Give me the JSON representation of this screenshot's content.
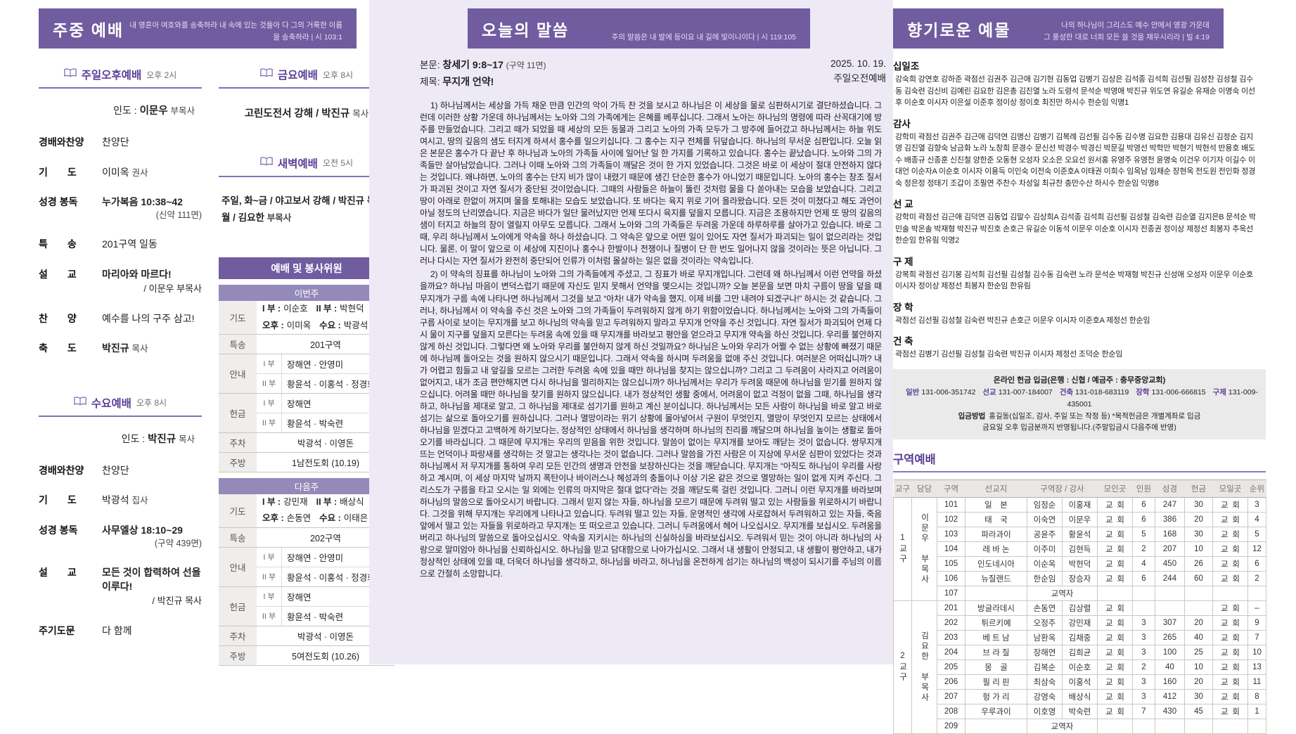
{
  "colors": {
    "accent": "#705c9f",
    "accent_dark": "#5b3f96",
    "week_bar": "#948ab9",
    "mid_panel_bg": "#edeaf6"
  },
  "left": {
    "header": {
      "title": "주중 예배",
      "subtitle": "내 영혼아 여호와를 송축하라 내 속에 있는 것들아 다 그의 거룩한 이름을 송축하라  |  시 103:1"
    },
    "sunday": {
      "title": "주일오후예배",
      "time": "오후 2시",
      "leader_label": "인도 :",
      "leader": "이문우",
      "leader_suffix": "부목사",
      "rows": {
        "praise": {
          "label": "경배와찬양",
          "value": "찬양단"
        },
        "prayer": {
          "label": "기  도",
          "value": "이미옥",
          "suffix": "권사"
        },
        "scripture": {
          "label": "성경 봉독",
          "value": "누가복음  10:38~42",
          "page": "(신약 111면)"
        },
        "special": {
          "label": "특  송",
          "value": "201구역 일동"
        },
        "sermon": {
          "label": "설  교",
          "value": "마리아와  마르다!",
          "by": "/ 이문우 부목사"
        },
        "hymn": {
          "label": "찬  양",
          "value": "예수를 나의 구주 삼고!"
        },
        "benediction": {
          "label": "축  도",
          "value": "박진규",
          "suffix": "목사"
        }
      }
    },
    "wednesday": {
      "title": "수요예배",
      "time": "오후 8시",
      "leader_label": "인도 :",
      "leader": "박진규",
      "leader_suffix": "목사",
      "rows": {
        "praise": {
          "label": "경배와찬양",
          "value": "찬양단"
        },
        "prayer": {
          "label": "기  도",
          "value": "박광석",
          "suffix": "집사"
        },
        "scripture": {
          "label": "성경 봉독",
          "value": "사무엘상  18:10~29",
          "page": "(구약 439면)"
        },
        "sermon": {
          "label": "설  교",
          "value": "모든 것이 합력하여 선을 이루다!",
          "by": "/ 박진규 목사"
        },
        "lords_prayer": {
          "label": "주기도문",
          "value": "다 함께"
        }
      }
    },
    "friday": {
      "title": "금요예배",
      "time": "오후 8시",
      "line": "고린도전서 강해 /",
      "name": "박진규",
      "suffix": "목사"
    },
    "dawn": {
      "title": "새벽예배",
      "time": "오전 5시",
      "line1": "주일, 화~금 / 야고보서 강해 / 박진규 목사",
      "line2": "월 / 김요한",
      "line2_suffix": "부목사"
    }
  },
  "committee": {
    "title": "예배 및 봉사위원",
    "row_labels": {
      "prayer": "기도",
      "special": "특송",
      "usher": "안내",
      "offering": "헌금",
      "parking": "주차",
      "kitchen": "주방"
    },
    "this_week": {
      "label": "이번주",
      "prayer": {
        "l1a": "I 부 :",
        "v1a": "이순호",
        "l1b": "II 부 :",
        "v1b": "박현덕",
        "l2a": "오후 :",
        "v2a": "이미옥",
        "l2b": "수요 :",
        "v2b": "박광석"
      },
      "special": "201구역",
      "usher": [
        {
          "p": "I 부",
          "n": "장해연 · 안영미"
        },
        {
          "p": "II 부",
          "n": "황윤석 · 이홍석 · 정경화"
        }
      ],
      "offering": [
        {
          "p": "I 부",
          "n": "장해연"
        },
        {
          "p": "II 부",
          "n": "황윤석 · 박숙련"
        }
      ],
      "parking": "박광석 · 이영돈",
      "kitchen": "1남전도회 (10.19)"
    },
    "next_week": {
      "label": "다음주",
      "prayer": {
        "l1a": "I 부 :",
        "v1a": "강민재",
        "l1b": "II 부 :",
        "v1b": "배상식",
        "l2a": "오후 :",
        "v2a": "손동연",
        "l2b": "수요 :",
        "v2b": "이태은"
      },
      "special": "202구역",
      "usher": [
        {
          "p": "I 부",
          "n": "장해연 · 안영미"
        },
        {
          "p": "II 부",
          "n": "황윤석 · 이홍석 · 정경화"
        }
      ],
      "offering": [
        {
          "p": "I 부",
          "n": "장해연"
        },
        {
          "p": "II 부",
          "n": "황윤석 · 박숙련"
        }
      ],
      "parking": "박광석 · 이영돈",
      "kitchen": "5여전도회 (10.26)"
    }
  },
  "mid": {
    "header": {
      "title": "오늘의 말씀",
      "subtitle": "주의 말씀은 내 발에 등이요 내 길에 빛이니이다  |  시 119:105"
    },
    "meta": {
      "scripture_label": "본문:",
      "scripture": "창세기  9:8~17",
      "scripture_page": "(구약 11면)",
      "title_label": "제목:",
      "sermon_title": "무지개  언약!",
      "date": "2025. 10. 19.",
      "service": "주일오전예배"
    },
    "sermon": {
      "p1": "1) 하나님께서는 세상을 가득 채운 만큼 인간의 악이 가득 찬 것을 보시고 하나님은 이 세상을 물로 심판하시기로 결단하셨습니다. 그런데 이러한 상황 가운데 하나님께서는 노아와 그의 가족에게는 은혜를 베푸십니다. 그래서 노아는 하나님의 명령에 따라 산꼭대기에 방주를 만들었습니다. 그리고 때가 되었을 때 세상의 모든 동물과 그리고 노아의 가족 모두가 그 방주에 들어갔고 하나님께서는 하늘 위도 여시고, 땅의 깊음의 샘도 터지게 하셔서 홍수를 일으키십니다. 그 홍수는 지구 전체를 뒤덮습니다. 하나님의 무서운 심판입니다. 오늘 읽은 본문은 홍수가 다 끝난 후 하나님과 노아의 가족들 사이에 일어난 일 한 가지를 기록하고 있습니다. 홍수는 끝났습니다. 노아와 그의 가족들만 살아남았습니다. 그러나 이때 노아와 그의 가족들이 깨달은 것이 한 가지 있었습니다. 그것은 바로 이 세상이 절대 안전하지 않다는 것입니다. 왜냐하면, 노아의 홍수는 단지 비가 많이 내렸기 때문에 생긴 단순한 홍수가 아니었기 때문입니다. 노아의 홍수는 창조 질서가 파괴된 것이고 자연 질서가 중단된 것이었습니다. 그때의 사람들은 하늘이 뚫린 것처럼 물을 다 쏟아내는 모습을 보았습니다. 그리고 땅이 아래로 한없이 꺼지며 물을 토해내는 모습도 보았습니다. 또 바다는 육지 위로 기어 올라왔습니다. 모든 것이 미쳤다고 해도 과언이 아닐 정도의 난리였습니다. 지금은 바다가 일단 물러났지만 언제 또다시 육지를 덮을지 모릅니다. 지금은 조용하지만 언제 또 땅의 깊음의 샘이 터지고 하늘의 창이 열릴지 아무도 모릅니다. 그래서 노아와 그의 가족들은 두려움 가운데 하루하루를 살아가고 있습니다. 바로 그때, 우리 하나님께서 노아에게 약속을 하나 하셨습니다. 그 약속은 앞으로 어떤 일이 있어도 자연 질서가 파괴되는 일이 없으리라는 것입니다. 물론, 이 말이 앞으로 이 세상에 지진이나 홍수나 한발이나 전쟁이나 질병이 단 한 번도 일어나지 않을 것이라는 뜻은 아닙니다. 그러나 다시는 자연 질서가 완전히 중단되어 인류가 이처럼 몰살하는 일은 없을 것이라는 약속입니다.",
      "p2": "2) 이 약속의 징표를 하나님이 노아와 그의 가족들에게 주셨고, 그 징표가 바로 무지개입니다. 그런데 왜 하나님께서 이런 언약을 하셨을까요? 하나님 마음이 변덕스럽기 때문에 자신도 믿지 못해서 언약을 맺으시는 것입니까? 오늘 본문을 보면 마치 구름이 땅을 덮을 때 무지개가 구름 속에 나타나면 하나님께서 그것을 보고 “아차! 내가 약속을 했지. 이제 비를 그만 내려야 되겠구나!” 하시는 것 같습니다. 그러나, 하나님께서 이 약속을 주신 것은 노아와 그의 가족들이 두려워하지 않게 하기 위함이었습니다. 하나님께서는 노아와 그의 가족들이 구름 사이로 보이는 무지개를 보고 하나님의 약속을 믿고 두려워하지 말라고 무지개 언약을 주신 것입니다. 자연 질서가 파괴되어 언제 다시 물이 지구를 덮을지 모른다는 두려움 속에 있을 때 무지개를 바라보고 평안을 얻으라고 무지개 약속을 하신 것입니다. 우리를 불안하지 않게 하신 것입니다. 그렇다면 왜 노아와 우리를 불안하지 않게 하신 것일까요? 하나님은 노아와 우리가 어쩔 수 없는 상황에 빠졌기 때문에 하나님께 돌아오는 것을 원하지 않으시기 때문입니다. 그래서 약속을 하시며 두려움을 없애 주신 것입니다. 여러분은 어떠십니까? 내가 어렵고 힘들고 내 앞길을 모르는 그러한 두려움 속에 있을 때만 하나님을 찾지는 않으십니까? 그리고 그 두려움이 사라지고 어려움이 없어지고, 내가 조금 편안해지면 다시 하나님을 멀리하지는 않으십니까? 하나님께서는 우리가 두려움 때문에 하나님을 믿기를 원하지 않으십니다. 어려울 때만 하나님을 찾기를 원하지 않으십니다. 내가 정상적인 생활 중에서, 어려움이 없고 걱정이 없을 그때, 하나님을 생각하고, 하나님을 제대로 알고, 그 하나님을 제대로 섬기기를 원하고 계신 분이십니다. 하나님께서는 모든 사람이 하나님을 바로 알고 바로 섬기는 삶으로 돌아오기를 원하십니다. 그러나 멸망이라는 위기 상황에 몰아넣어서 구원이 무엇인지, 멸망이 무엇인지 모르는 상태에서 하나님을 믿겠다고 고백하게 하기보다는, 정상적인 상태에서 하나님을 생각하며 하나님의 진리를 깨달으며 하나님을 높이는 생활로 돌아오기를 바라십니다. 그 때문에 무지개는 우리의 믿음을 위한 것입니다. 말씀이 없이는 무지개를 보아도 깨닫는 것이 없습니다. 쌍무지개 뜨는 언덕이나 파랑새를 생각하는 것 말고는 생각나는 것이 없습니다. 그러나 말씀을 가진 사람은 이 지상에 무서운 심판이 있었다는 것과 하나님께서 저 무지개를 통하여 우리 모든 인간의 생명과 안전을 보장하신다는 것을 깨닫습니다. 무지개는 “아직도 하나님이 우리를 사랑하고 계시며, 이 세상 마지막 날까지 폭탄이나 바이러스나 혜성과의 충돌이나 이상 기온 같은 것으로 멸망하는 일이 없게 지켜 주신다. 그리스도가 구름을 타고 오시는 일 외에는 인류의 마지막은 절대 없다”라는 것을 깨닫도록 걸린 것입니다. 그러니 이런 무지개를 바라보며 하나님의 말씀으로 돌아오시기 바랍니다. 그래서 믿지 않는 자들, 하나님을 모르기 때문에 두려워 떨고 있는 사람들을 위로하시기 바랍니다. 그것을 위해 무지개는 우리에게 나타나고 있습니다. 두려워 떨고 있는 자들, 운명적인 생각에 사로잡혀서 두려워하고 있는 자들, 죽음 앞에서 떨고 있는 자들을 위로하라고 무지개는 또 떠오르고 있습니다. 그러니 두려움에서 헤어 나오십시오. 무지개를 보십시오. 두려움을 버리고 하나님의 말씀으로 돌아오십시오. 약속을 지키시는 하나님의 신실하심을 바라보십시오. 두려워서 믿는 것이 아니라 하나님의 사랑으로 말미암아 하나님을 신뢰하십시오. 하나님을 믿고 담대함으로 나아가십시오. 그래서 내 생활이 안정되고, 내 생활이 평안하고, 내가 정상적인 상태에 있을 때, 더욱더 하나님을 생각하고, 하나님을 바라고, 하나님을 온전하게 섬기는 하나님의 백성이 되시기를 주님의 이름으로 간절히 소망합니다."
    }
  },
  "right": {
    "header": {
      "title": "향기로운 예물",
      "sub1": "나의 하나님이 그리스도 예수 안에서 영광 가운데",
      "sub2": "그 풍성한 대로 너희 모든 쓸 것을 채우시리라  |  빌 4:19"
    },
    "offerings": [
      {
        "title": "십일조",
        "names": "강숙희 강연호 강하준 곽점선 김권주 김근애 김기현 김동업 김병기 김상은 김석종 김석희 김선필 김성찬 김성철 김수동 김숙련 김신비 김예린 김요한 김은총 김진열 노라 도령석 문석순 박영애 박진규 위도연 유길순 유재순 이명숙 이선후 이순호 이시자 이은설 이준후 정이상 정이호 최진만 하시수 한순임 익명1"
      },
      {
        "title": "감사",
        "names": "강학미 곽점선 김권주 김근애 김덕연 김명신 김병기 김복례 김선필 김수동 김수명 김요한 김용대 김유신 김정순 김지영 김진열 김향숙 남금화 노라 노창희 문경수 문신선 박경수 박경신 박문길 박영선 박학만 박현기 박현석 반용호 배도수 배종규 신종훈 신진철 양한준 오동현 오성자 오소은 오요선 원서홍 유영주 유영천 윤명숙 이건우 이기자 이길수 이대언 이순자A 이순호 이시자 이용득 이인숙 이전숙 이준호A 이태권 이희수 임옥남 임채순 장현옥 전도원 전인화 정경숙 정은정 정태기 조갑이 조필연 주찬수 차성일 최규찬 충만수산 하시수 한순임 익명8"
      },
      {
        "title": "선 교",
        "names": "강학미 곽점선 김근애 김덕연 김동업 김말수 김상희A 김석종 김석희 김선필 김성철 김숙련 김순열 김지은B 문석순 박민솔 박온솔 박재형 박진규 박진호 손호근 유길순 이동석 이문우 이순호 이시자 전종권 정이상 제정선 최봉자 추옥선 한순임 한유림 익명2"
      },
      {
        "title": "구 제",
        "names": "강복희 곽점선 김기봉 김석희 김선필 김성철 김수동 김숙련 노라 문석순 박재형 박진규 신성애 오성자 이문우 이순호 이시자 정이상 제정선 최봉자 한순임 한유림"
      },
      {
        "title": "장 학",
        "names": "곽점선 김선필 김성철 김숙련 박진규 손호근 이문우 이시자 이준호A 제정선 한순임"
      },
      {
        "title": "건 축",
        "names": "곽점선 김병기 김선필 김성철 김숙련 박진규 이시자 제정선 조덕순 한순임"
      }
    ],
    "bank": {
      "line1": "온라인 헌금 입금(은행 : 신협  /  예금주 : 충무중앙교회)",
      "accounts": [
        {
          "label": "일반",
          "no": "131-006-351742"
        },
        {
          "label": "선교",
          "no": "131-007-184007"
        },
        {
          "label": "건축",
          "no": "131-018-683119"
        },
        {
          "label": "장학",
          "no": "131-006-666815"
        },
        {
          "label": "구제",
          "no": "131-009-435001"
        }
      ],
      "method_label": "입금방법",
      "method_text": "홍길동(십일조, 감사, 주일 또는 작정 등) *목적헌금은 개별계좌로 입금",
      "note": "금요일 오후 입금분까지 반영됩니다.(주말입금시 다음주에 반영)"
    },
    "district_table": {
      "title": "구역예배",
      "headers": [
        "교구",
        "담당",
        "구역",
        "선교지",
        "구역장 / 강사",
        "모인곳",
        "인원",
        "성경",
        "헌금",
        "모일곳",
        "순위"
      ],
      "groups": [
        {
          "district": "1교구",
          "manager": "이문우 부목사",
          "rows": [
            {
              "no": "101",
              "mission": "일 본",
              "leader": "임정순",
              "speaker": "이홍재",
              "meet": "교 회",
              "attend": "6",
              "bible": "247",
              "offer": "30",
              "meet2": "교 회",
              "rank": "3"
            },
            {
              "no": "102",
              "mission": "태 국",
              "leader": "이숙연",
              "speaker": "이문우",
              "meet": "교 회",
              "attend": "6",
              "bible": "386",
              "offer": "20",
              "meet2": "교 회",
              "rank": "4"
            },
            {
              "no": "103",
              "mission": "파라과이",
              "leader": "공윤주",
              "speaker": "황윤석",
              "meet": "교 회",
              "attend": "5",
              "bible": "168",
              "offer": "30",
              "meet2": "교 회",
              "rank": "5"
            },
            {
              "no": "104",
              "mission": "레 바 논",
              "leader": "이주미",
              "speaker": "김현득",
              "meet": "교 회",
              "attend": "2",
              "bible": "207",
              "offer": "10",
              "meet2": "교 회",
              "rank": "12"
            },
            {
              "no": "105",
              "mission": "인도네시아",
              "leader": "이순옥",
              "speaker": "박현덕",
              "meet": "교 회",
              "attend": "4",
              "bible": "450",
              "offer": "26",
              "meet2": "교 회",
              "rank": "6"
            },
            {
              "no": "106",
              "mission": "뉴질랜드",
              "leader": "한순임",
              "speaker": "장승자",
              "meet": "교 회",
              "attend": "6",
              "bible": "244",
              "offer": "60",
              "meet2": "교 회",
              "rank": "2"
            },
            {
              "no": "107",
              "staff": "교역자"
            }
          ]
        },
        {
          "district": "2교구",
          "manager": "김요한 부목사",
          "rows": [
            {
              "no": "201",
              "mission": "방글라데시",
              "leader": "손동연",
              "speaker": "김상렬",
              "meet": "교 회",
              "attend": "",
              "bible": "",
              "offer": "",
              "meet2": "교 회",
              "rank": "–"
            },
            {
              "no": "202",
              "mission": "튀르키예",
              "leader": "오정주",
              "speaker": "강민재",
              "meet": "교 회",
              "attend": "3",
              "bible": "307",
              "offer": "20",
              "meet2": "교 회",
              "rank": "9"
            },
            {
              "no": "203",
              "mission": "베 트 남",
              "leader": "남환옥",
              "speaker": "김채중",
              "meet": "교 회",
              "attend": "3",
              "bible": "265",
              "offer": "40",
              "meet2": "교 회",
              "rank": "7"
            },
            {
              "no": "204",
              "mission": "브 라 질",
              "leader": "장해연",
              "speaker": "김희균",
              "meet": "교 회",
              "attend": "3",
              "bible": "100",
              "offer": "25",
              "meet2": "교 회",
              "rank": "10"
            },
            {
              "no": "205",
              "mission": "몽 골",
              "leader": "김복순",
              "speaker": "이순호",
              "meet": "교 회",
              "attend": "2",
              "bible": "40",
              "offer": "10",
              "meet2": "교 회",
              "rank": "13"
            },
            {
              "no": "206",
              "mission": "필 리 핀",
              "leader": "최삼숙",
              "speaker": "이홍석",
              "meet": "교 회",
              "attend": "3",
              "bible": "160",
              "offer": "20",
              "meet2": "교 회",
              "rank": "11"
            },
            {
              "no": "207",
              "mission": "헝 가 리",
              "leader": "강영숙",
              "speaker": "배상식",
              "meet": "교 회",
              "attend": "3",
              "bible": "412",
              "offer": "30",
              "meet2": "교 회",
              "rank": "8"
            },
            {
              "no": "208",
              "mission": "우루과이",
              "leader": "이호영",
              "speaker": "박숙련",
              "meet": "교 회",
              "attend": "7",
              "bible": "430",
              "offer": "45",
              "meet2": "교 회",
              "rank": "1"
            },
            {
              "no": "209",
              "staff": "교역자"
            }
          ]
        }
      ]
    }
  }
}
